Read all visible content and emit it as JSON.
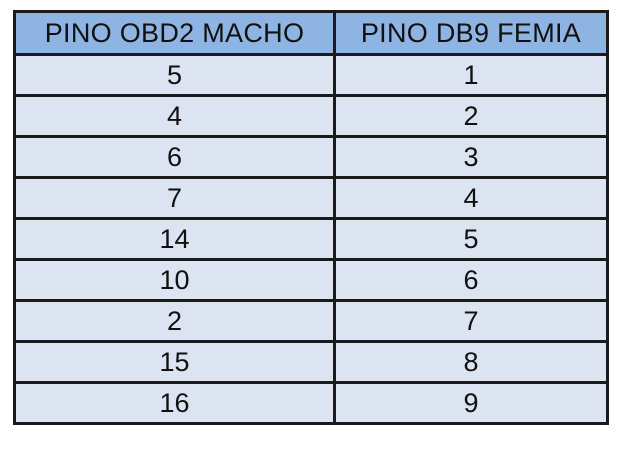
{
  "table": {
    "headers": [
      "PINO OBD2 MACHO",
      "PINO DB9 FEMIA"
    ],
    "rows": [
      [
        "5",
        "1"
      ],
      [
        "4",
        "2"
      ],
      [
        "6",
        "3"
      ],
      [
        "7",
        "4"
      ],
      [
        "14",
        "5"
      ],
      [
        "10",
        "6"
      ],
      [
        "2",
        "7"
      ],
      [
        "15",
        "8"
      ],
      [
        "16",
        "9"
      ]
    ]
  },
  "colors": {
    "header_background": "#8eb4e3",
    "cell_background": "#dde4f1",
    "border": "#1a1a1a"
  }
}
